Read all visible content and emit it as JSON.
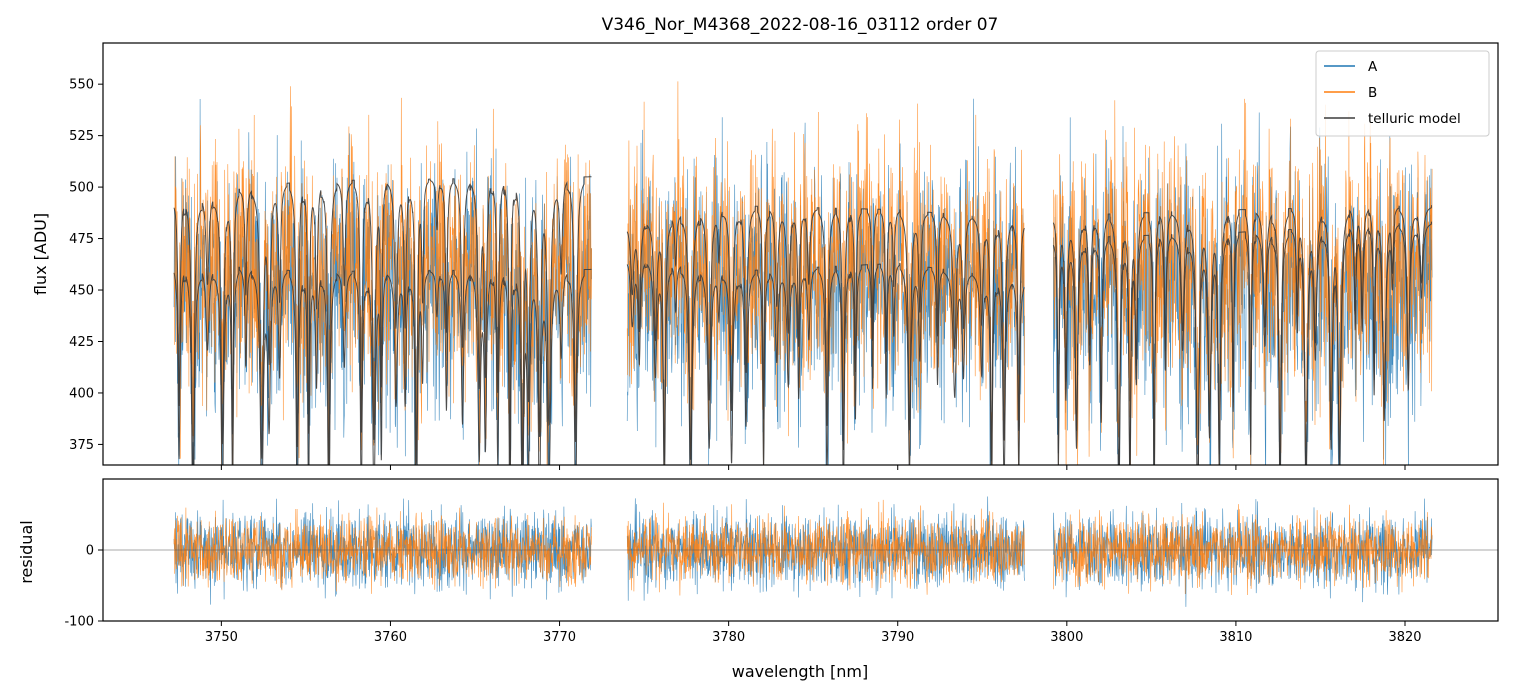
{
  "chart_data": [
    {
      "id": "flux-panel",
      "type": "line",
      "title": "V346_Nor_M4368_2022-08-16_03112  order 07",
      "xlabel": "",
      "ylabel": "flux [ADU]",
      "xlim": [
        3743.0,
        3825.5
      ],
      "ylim": [
        365,
        570
      ],
      "yticks": [
        375,
        400,
        425,
        450,
        475,
        500,
        525,
        550
      ],
      "legend": {
        "placement": "upper-right",
        "entries": [
          "A",
          "B",
          "telluric model"
        ]
      },
      "segments": [
        [
          3747.2,
          3771.9
        ],
        [
          3774.0,
          3797.5
        ],
        [
          3799.2,
          3821.6
        ]
      ],
      "series": [
        {
          "name": "A",
          "color": "#1f77b4",
          "base_level": 460,
          "noise_amplitude": 55,
          "description": "noisy extracted spectrum, fiber A"
        },
        {
          "name": "B",
          "color": "#ff7f0e",
          "base_level": 470,
          "noise_amplitude": 55,
          "description": "noisy extracted spectrum, fiber B"
        },
        {
          "name": "telluric model",
          "color": "#3b3b3b",
          "continuum_upper": [
            495,
            503,
            505,
            482,
            491,
            489,
            484,
            486,
            489,
            491
          ],
          "continuum_lower": [
            463,
            459,
            460,
            466,
            459,
            463,
            455,
            475,
            478,
            483
          ],
          "continuum_x": [
            3747.2,
            3755,
            3771.9,
            3774.0,
            3780,
            3790,
            3797.5,
            3799.2,
            3810,
            3821.6
          ]
        }
      ]
    },
    {
      "id": "residual-panel",
      "type": "line",
      "title": "",
      "xlabel": "wavelength [nm]",
      "ylabel": "residual",
      "xlim": [
        3743.0,
        3825.5
      ],
      "ylim": [
        -100,
        100
      ],
      "yticks": [
        -100,
        0
      ],
      "xticks": [
        3750,
        3760,
        3770,
        3780,
        3790,
        3800,
        3810,
        3820
      ],
      "zero_line": true,
      "series": [
        {
          "name": "A",
          "color": "#1f77b4",
          "noise_amplitude": 45
        },
        {
          "name": "B",
          "color": "#ff7f0e",
          "noise_amplitude": 40
        }
      ]
    }
  ]
}
